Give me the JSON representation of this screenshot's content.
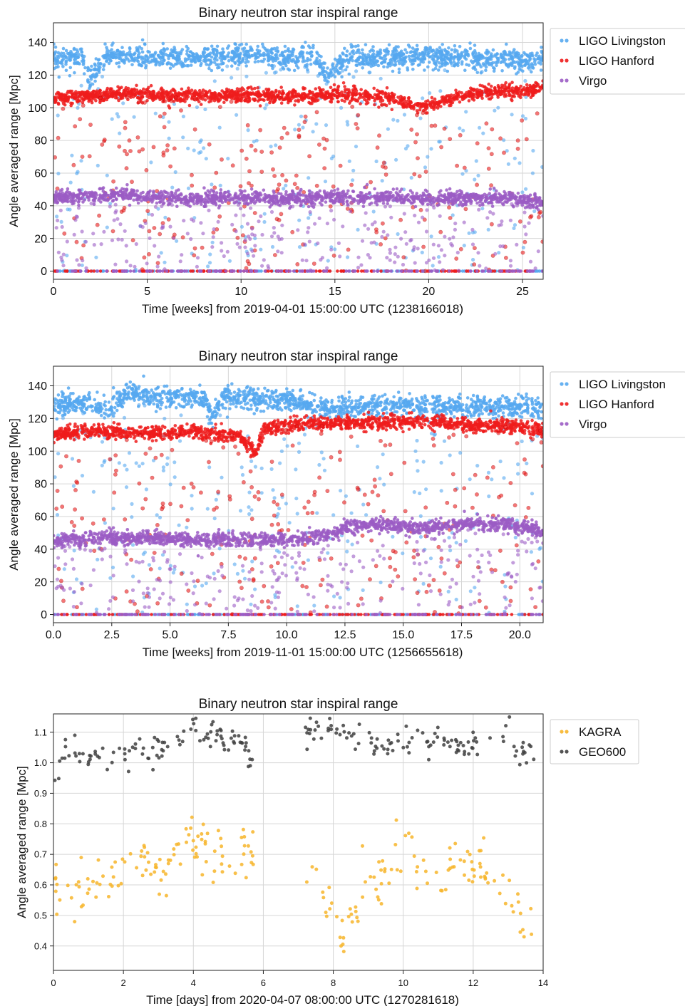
{
  "chart_data": [
    {
      "type": "scatter",
      "title": "Binary neutron star inspiral range",
      "xlabel": "Time [weeks] from 2019-04-01 15:00:00 UTC (1238166018)",
      "ylabel": "Angle averaged range [Mpc]",
      "xlim": [
        0,
        26.1
      ],
      "ylim": [
        -5,
        152
      ],
      "xticks": [
        0,
        5,
        10,
        15,
        20,
        25
      ],
      "xtick_labels": [
        "0",
        "5",
        "10",
        "15",
        "20",
        "25"
      ],
      "yticks": [
        0,
        20,
        40,
        60,
        80,
        100,
        120,
        140
      ],
      "ytick_labels": [
        "0",
        "20",
        "40",
        "60",
        "80",
        "100",
        "120",
        "140"
      ],
      "grid": true,
      "legend_position": "outside-right",
      "series": [
        {
          "name": "LIGO Livingston",
          "color": "#56a8f0",
          "x": [
            0,
            1.5,
            1.9,
            3,
            5,
            7,
            9,
            11,
            12.5,
            13.3,
            14,
            14.6,
            15.5,
            17,
            19,
            21,
            23,
            25,
            26.1
          ],
          "y": [
            130,
            131,
            118,
            132,
            131,
            130,
            131,
            132,
            130,
            132,
            131,
            118,
            130,
            131,
            131,
            131,
            130,
            129,
            130
          ]
        },
        {
          "name": "LIGO Hanford",
          "color": "#ee1c1c",
          "x": [
            0,
            2,
            4,
            6,
            8,
            10,
            12,
            14,
            16,
            18,
            19.5,
            21,
            23,
            25,
            26.1
          ],
          "y": [
            106,
            107,
            109,
            107,
            107,
            108,
            107,
            107,
            108,
            106,
            100,
            105,
            110,
            110,
            112
          ]
        },
        {
          "name": "Virgo",
          "color": "#9b5cc4",
          "x": [
            0,
            2,
            4,
            6,
            8,
            10,
            12,
            14,
            16,
            18,
            20,
            22,
            24,
            26.1
          ],
          "y": [
            45,
            46,
            47,
            45,
            44,
            45,
            44,
            45,
            45,
            45,
            44,
            45,
            45,
            42
          ]
        }
      ]
    },
    {
      "type": "scatter",
      "title": "Binary neutron star inspiral range",
      "xlabel": "Time [weeks] from 2019-11-01 15:00:00 UTC (1256655618)",
      "ylabel": "Angle averaged range [Mpc]",
      "xlim": [
        0,
        21
      ],
      "ylim": [
        -5,
        152
      ],
      "xticks": [
        0,
        2.5,
        5,
        7.5,
        10,
        12.5,
        15,
        17.5,
        20
      ],
      "xtick_labels": [
        "0.0",
        "2.5",
        "5.0",
        "7.5",
        "10.0",
        "12.5",
        "15.0",
        "17.5",
        "20.0"
      ],
      "yticks": [
        0,
        20,
        40,
        60,
        80,
        100,
        120,
        140
      ],
      "ytick_labels": [
        "0",
        "20",
        "40",
        "60",
        "80",
        "100",
        "120",
        "140"
      ],
      "grid": true,
      "legend_position": "outside-right",
      "series": [
        {
          "name": "LIGO Livingston",
          "color": "#56a8f0",
          "x": [
            0,
            1.5,
            2.4,
            3,
            5,
            6.5,
            6.8,
            7.2,
            8,
            10,
            11.2,
            11.5,
            13,
            15,
            17,
            19,
            21
          ],
          "y": [
            128,
            130,
            125,
            135,
            133,
            132,
            120,
            132,
            132,
            131,
            128,
            126,
            127,
            128,
            127,
            127,
            126
          ]
        },
        {
          "name": "LIGO Hanford",
          "color": "#ee1c1c",
          "x": [
            0,
            2,
            4,
            6,
            8,
            8.7,
            9,
            10,
            12,
            14,
            16,
            18,
            20,
            21
          ],
          "y": [
            110,
            112,
            111,
            112,
            109,
            98,
            113,
            116,
            117,
            118,
            118,
            116,
            115,
            113
          ]
        },
        {
          "name": "Virgo",
          "color": "#9b5cc4",
          "x": [
            0,
            2,
            4,
            6,
            8,
            10,
            12,
            12.6,
            14,
            16,
            17.5,
            19,
            21
          ],
          "y": [
            45,
            47,
            47,
            46,
            46,
            46,
            49,
            54,
            55,
            53,
            55,
            56,
            51
          ]
        }
      ]
    },
    {
      "type": "scatter",
      "title": "Binary neutron star inspiral range",
      "xlabel": "Time [days] from 2020-04-07 08:00:00 UTC (1270281618)",
      "ylabel": "Angle averaged range [Mpc]",
      "xlim": [
        0,
        14
      ],
      "ylim": [
        0.32,
        1.16
      ],
      "xticks": [
        0,
        2,
        4,
        6,
        8,
        10,
        12,
        14
      ],
      "xtick_labels": [
        "0",
        "2",
        "4",
        "6",
        "8",
        "10",
        "12",
        "14"
      ],
      "yticks": [
        0.4,
        0.5,
        0.6,
        0.7,
        0.8,
        0.9,
        1.0,
        1.1
      ],
      "ytick_labels": [
        "0.4",
        "0.5",
        "0.6",
        "0.7",
        "0.8",
        "0.9",
        "1.0",
        "1.1"
      ],
      "grid": true,
      "legend_position": "outside-right",
      "series": [
        {
          "name": "KAGRA",
          "color": "#f7b52a",
          "x": [
            0,
            0.5,
            1,
            1.5,
            2,
            2.5,
            3,
            3.5,
            4,
            4.5,
            5,
            5.5,
            7.5,
            8,
            8.3,
            9,
            9.5,
            10,
            10.5,
            11,
            11.5,
            12,
            12.5,
            13,
            13.5
          ],
          "y": [
            0.55,
            0.6,
            0.58,
            0.63,
            0.62,
            0.67,
            0.63,
            0.71,
            0.73,
            0.71,
            0.7,
            0.7,
            0.6,
            0.55,
            0.42,
            0.6,
            0.66,
            0.72,
            0.66,
            0.6,
            0.67,
            0.66,
            0.63,
            0.59,
            0.5
          ]
        },
        {
          "name": "GEO600",
          "color": "#404040",
          "x": [
            0,
            0.3,
            1,
            1.5,
            2,
            2.5,
            3,
            3.5,
            4,
            4.5,
            5,
            5.5,
            5.7,
            7.2,
            7.5,
            8,
            8.5,
            9,
            9.5,
            10,
            10.5,
            11,
            11.5,
            12,
            12.5,
            13,
            13.3,
            13.6
          ],
          "y": [
            0.91,
            1.04,
            1.02,
            1.02,
            1.04,
            1.04,
            1.04,
            1.06,
            1.12,
            1.1,
            1.07,
            1.05,
            0.99,
            1.07,
            1.12,
            1.09,
            1.08,
            1.07,
            1.07,
            1.06,
            1.07,
            1.07,
            1.06,
            1.06,
            1.08,
            1.11,
            1.02,
            1.04
          ]
        }
      ]
    }
  ]
}
